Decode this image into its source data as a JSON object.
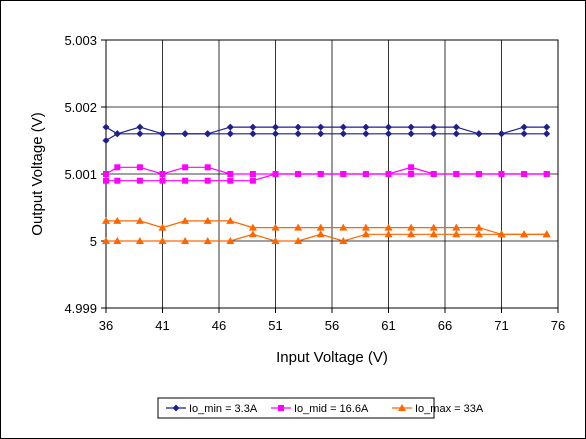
{
  "chart_data": {
    "type": "line",
    "xlabel": "Input Voltage (V)",
    "ylabel": "Output Voltage (V)",
    "xlim": [
      36,
      76
    ],
    "ylim": [
      4.999,
      5.003
    ],
    "x_ticks": [
      36,
      41,
      46,
      51,
      56,
      61,
      66,
      71,
      76
    ],
    "x_tick_labels": [
      "36",
      "41",
      "46",
      "51",
      "56",
      "61",
      "66",
      "71",
      "76"
    ],
    "y_ticks": [
      4.999,
      5,
      5.001,
      5.002,
      5.003
    ],
    "y_tick_labels": [
      "4.999",
      "5",
      "5.001",
      "5.002",
      "5.003"
    ],
    "grid": true,
    "legend_position": "bottom",
    "series": [
      {
        "name": "Io_min = 3.3A",
        "color": "#1f1f8f",
        "marker": "diamond",
        "x": [
          36,
          37,
          39,
          41,
          43,
          45,
          47,
          49,
          51,
          53,
          55,
          57,
          59,
          61,
          63,
          65,
          67,
          69,
          71,
          73,
          75
        ],
        "values": [
          5.0017,
          5.0016,
          5.0017,
          5.0016,
          5.0016,
          5.0016,
          5.0017,
          5.0017,
          5.0017,
          5.0017,
          5.0017,
          5.0017,
          5.0017,
          5.0017,
          5.0017,
          5.0017,
          5.0017,
          5.0016,
          5.0016,
          5.0017,
          5.0017
        ]
      },
      {
        "name": "",
        "color": "#1f1f8f",
        "marker": "diamond",
        "x": [
          36,
          37,
          39,
          41,
          43,
          45,
          47,
          49,
          51,
          53,
          55,
          57,
          59,
          61,
          63,
          65,
          67,
          69,
          71,
          73,
          75
        ],
        "values": [
          5.0015,
          5.0016,
          5.0016,
          5.0016,
          5.0016,
          5.0016,
          5.0016,
          5.0016,
          5.0016,
          5.0016,
          5.0016,
          5.0016,
          5.0016,
          5.0016,
          5.0016,
          5.0016,
          5.0016,
          5.0016,
          5.0016,
          5.0016,
          5.0016
        ]
      },
      {
        "name": "Io_mid = 16.6A",
        "color": "#ff00ff",
        "marker": "square",
        "x": [
          36,
          37,
          39,
          41,
          43,
          45,
          47,
          49,
          51,
          53,
          55,
          57,
          59,
          61,
          63,
          65,
          67,
          69,
          71,
          73,
          75
        ],
        "values": [
          5.001,
          5.0011,
          5.0011,
          5.001,
          5.0011,
          5.0011,
          5.001,
          5.001,
          5.001,
          5.001,
          5.001,
          5.001,
          5.001,
          5.001,
          5.0011,
          5.001,
          5.001,
          5.001,
          5.001,
          5.001,
          5.001
        ]
      },
      {
        "name": "",
        "color": "#ff00ff",
        "marker": "square",
        "x": [
          36,
          37,
          39,
          41,
          43,
          45,
          47,
          49,
          51,
          53,
          55,
          57,
          59,
          61,
          63,
          65,
          67,
          69,
          71,
          73,
          75
        ],
        "values": [
          5.0009,
          5.0009,
          5.0009,
          5.0009,
          5.0009,
          5.0009,
          5.0009,
          5.0009,
          5.001,
          5.001,
          5.001,
          5.001,
          5.001,
          5.001,
          5.001,
          5.001,
          5.001,
          5.001,
          5.001,
          5.001,
          5.001
        ]
      },
      {
        "name": "Io_max = 33A",
        "color": "#ff6600",
        "marker": "triangle",
        "x": [
          36,
          37,
          39,
          41,
          43,
          45,
          47,
          49,
          51,
          53,
          55,
          57,
          59,
          61,
          63,
          65,
          67,
          69,
          71,
          73,
          75
        ],
        "values": [
          5.0003,
          5.0003,
          5.0003,
          5.0002,
          5.0003,
          5.0003,
          5.0003,
          5.0002,
          5.0002,
          5.0002,
          5.0002,
          5.0002,
          5.0002,
          5.0002,
          5.0002,
          5.0002,
          5.0002,
          5.0002,
          5.0001,
          5.0001,
          5.0001
        ]
      },
      {
        "name": "",
        "color": "#ff6600",
        "marker": "triangle",
        "x": [
          36,
          37,
          39,
          41,
          43,
          45,
          47,
          49,
          51,
          53,
          55,
          57,
          59,
          61,
          63,
          65,
          67,
          69,
          71,
          73,
          75
        ],
        "values": [
          5.0,
          5.0,
          5.0,
          5.0,
          5.0,
          5.0,
          5.0,
          5.0001,
          5.0,
          5.0,
          5.0001,
          5.0,
          5.0001,
          5.0001,
          5.0001,
          5.0001,
          5.0001,
          5.0001,
          5.0001,
          5.0001,
          5.0001
        ]
      }
    ]
  }
}
